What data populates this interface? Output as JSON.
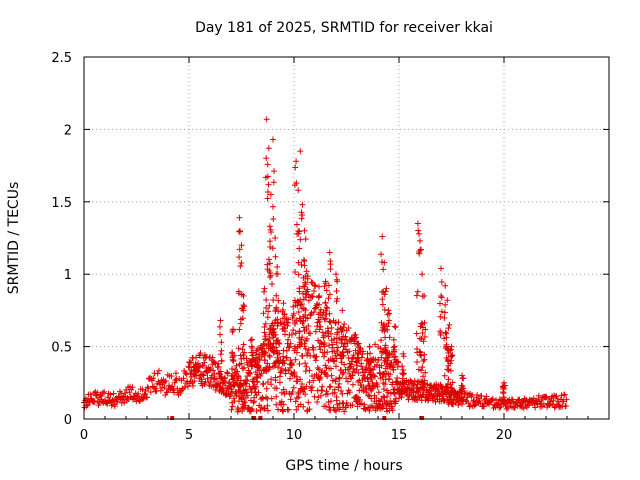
{
  "chart_data": {
    "type": "scatter",
    "title": "Day 181 of 2025, SRMTID for receiver kkai",
    "xlabel": "GPS time / hours",
    "ylabel": "SRMTID / TECUs",
    "xlim": [
      0,
      25
    ],
    "ylim": [
      0,
      2.5
    ],
    "xticks": [
      0,
      5,
      10,
      15,
      20
    ],
    "xtick_labels": [
      "0",
      "5",
      "10",
      "15",
      "20"
    ],
    "yticks": [
      0,
      0.5,
      1,
      1.5,
      2,
      2.5
    ],
    "ytick_labels": [
      "0",
      "0.5",
      "1",
      "1.5",
      "2",
      "2.5"
    ],
    "grid": true,
    "marker": "plus",
    "series_color": "#e00000",
    "series": [
      {
        "name": "SRMTID",
        "baseline": [
          [
            0.0,
            0.12
          ],
          [
            0.5,
            0.15
          ],
          [
            1.0,
            0.14
          ],
          [
            1.5,
            0.13
          ],
          [
            2.0,
            0.17
          ],
          [
            2.5,
            0.16
          ],
          [
            3.0,
            0.2
          ],
          [
            3.5,
            0.25
          ],
          [
            4.0,
            0.23
          ],
          [
            4.5,
            0.25
          ],
          [
            5.0,
            0.3
          ],
          [
            5.5,
            0.34
          ],
          [
            6.0,
            0.33
          ],
          [
            6.5,
            0.28
          ],
          [
            7.0,
            0.22
          ],
          [
            7.5,
            0.2
          ],
          [
            8.0,
            0.25
          ],
          [
            8.5,
            0.3
          ],
          [
            9.0,
            0.35
          ],
          [
            9.5,
            0.38
          ],
          [
            10.0,
            0.42
          ],
          [
            10.5,
            0.5
          ],
          [
            11.0,
            0.5
          ],
          [
            11.5,
            0.45
          ],
          [
            12.0,
            0.4
          ],
          [
            12.5,
            0.35
          ],
          [
            13.0,
            0.3
          ],
          [
            13.5,
            0.25
          ],
          [
            14.0,
            0.28
          ],
          [
            14.5,
            0.25
          ],
          [
            15.0,
            0.22
          ],
          [
            15.5,
            0.2
          ],
          [
            16.0,
            0.2
          ],
          [
            16.5,
            0.18
          ],
          [
            17.0,
            0.18
          ],
          [
            17.5,
            0.15
          ],
          [
            18.0,
            0.14
          ],
          [
            18.5,
            0.13
          ],
          [
            19.0,
            0.12
          ],
          [
            19.5,
            0.11
          ],
          [
            20.0,
            0.1
          ],
          [
            20.5,
            0.1
          ],
          [
            21.0,
            0.11
          ],
          [
            21.5,
            0.12
          ],
          [
            22.0,
            0.12
          ],
          [
            22.5,
            0.12
          ],
          [
            23.0,
            0.13
          ]
        ],
        "spikes": [
          [
            6.5,
            0.68
          ],
          [
            7.1,
            0.62
          ],
          [
            7.4,
            1.39
          ],
          [
            7.5,
            1.2
          ],
          [
            7.6,
            0.85
          ],
          [
            8.0,
            0.55
          ],
          [
            8.2,
            0.45
          ],
          [
            8.6,
            0.9
          ],
          [
            8.7,
            2.07
          ],
          [
            8.8,
            1.87
          ],
          [
            8.9,
            1.55
          ],
          [
            9.0,
            1.93
          ],
          [
            9.1,
            1.25
          ],
          [
            9.2,
            1.05
          ],
          [
            9.5,
            0.8
          ],
          [
            10.1,
            1.78
          ],
          [
            10.2,
            1.58
          ],
          [
            10.3,
            1.85
          ],
          [
            10.4,
            1.48
          ],
          [
            10.5,
            1.3
          ],
          [
            10.6,
            1.02
          ],
          [
            11.2,
            0.85
          ],
          [
            11.5,
            0.95
          ],
          [
            11.7,
            1.15
          ],
          [
            12.0,
            1.0
          ],
          [
            12.3,
            0.75
          ],
          [
            13.0,
            0.52
          ],
          [
            13.6,
            0.5
          ],
          [
            14.2,
            1.26
          ],
          [
            14.3,
            1.08
          ],
          [
            14.4,
            0.9
          ],
          [
            14.5,
            0.75
          ],
          [
            14.8,
            0.64
          ],
          [
            15.2,
            0.45
          ],
          [
            15.9,
            1.35
          ],
          [
            16.0,
            1.23
          ],
          [
            16.1,
            1.0
          ],
          [
            16.2,
            0.85
          ],
          [
            17.0,
            1.04
          ],
          [
            17.2,
            0.92
          ],
          [
            17.3,
            0.82
          ],
          [
            17.4,
            0.65
          ],
          [
            17.5,
            0.5
          ],
          [
            18.0,
            0.3
          ],
          [
            20.0,
            0.25
          ]
        ],
        "gaps_at_zero": [
          4.2,
          8.1,
          8.4,
          14.3,
          16.1
        ]
      }
    ]
  }
}
